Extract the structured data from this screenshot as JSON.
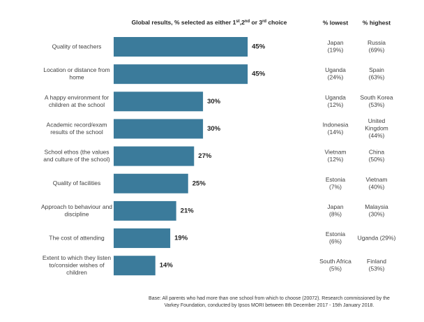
{
  "chart_data": {
    "type": "bar",
    "title": [
      "Global results, % selected as either 1",
      "st",
      ",2",
      "nd",
      " or 3",
      "rd",
      " choice"
    ],
    "categories": [
      [
        "Quality of teachers"
      ],
      [
        "Location or distance from",
        "home"
      ],
      [
        "A happy environment for",
        "children at the school"
      ],
      [
        "Academic record/exam",
        "results of the school"
      ],
      [
        "School ethos (the values",
        "and culture of the school)"
      ],
      [
        "Quality of facilities"
      ],
      [
        "Approach to behaviour and",
        "discipline"
      ],
      [
        "The cost of attending"
      ],
      [
        "Extent to which they listen",
        "to/consider wishes of",
        "children"
      ]
    ],
    "values": [
      45,
      45,
      30,
      30,
      27,
      25,
      21,
      19,
      14
    ],
    "value_labels": [
      "45%",
      "45%",
      "30%",
      "30%",
      "27%",
      "25%",
      "21%",
      "19%",
      "14%"
    ],
    "color": "#3b7b9b",
    "lowest": {
      "header": "% lowest",
      "rows": [
        [
          "Japan",
          "(19%)"
        ],
        [
          "Uganda",
          "(24%)"
        ],
        [
          "Uganda",
          "(12%)"
        ],
        [
          "Indonesia",
          "(14%)"
        ],
        [
          "Vietnam",
          "(12%)"
        ],
        [
          "Estonia",
          "(7%)"
        ],
        [
          "Japan",
          "(8%)"
        ],
        [
          "Estonia",
          "(6%)"
        ],
        [
          "South Africa",
          "(5%)"
        ]
      ]
    },
    "highest": {
      "header": "% highest",
      "rows": [
        [
          "Russia",
          "(69%)"
        ],
        [
          "Spain",
          "(63%)"
        ],
        [
          "South Korea",
          "(53%)"
        ],
        [
          "United",
          "Kingdom",
          "(44%)"
        ],
        [
          "China",
          "(50%)"
        ],
        [
          "Vietnam",
          "(40%)"
        ],
        [
          "Malaysia",
          "(30%)"
        ],
        [
          "Uganda (29%)"
        ],
        [
          "Finland",
          "(53%)"
        ]
      ]
    },
    "footnote": [
      "Base: All parents who had more than one school from which to choose (20072). Research commissioned by the",
      "Varkey Foundation, conducted by Ipsos MORI between 8th December 2017 - 15th January 2018."
    ]
  }
}
